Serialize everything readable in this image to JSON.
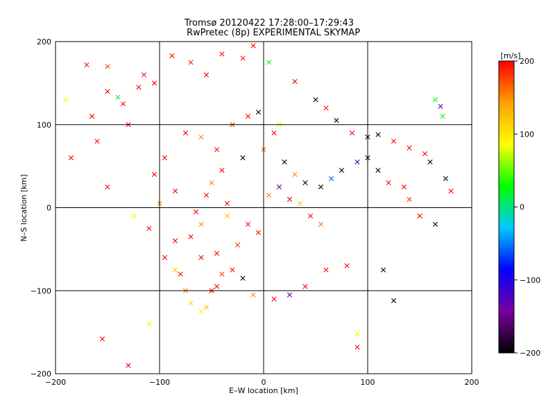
{
  "chart_data": {
    "type": "scatter",
    "title": "Tromsø 20120422 17:28:00–17:29:43",
    "subtitle": "RwPretec (8p) EXPERIMENTAL SKYMAP",
    "xlabel": "E–W location [km]",
    "ylabel": "N–S location [km]",
    "xlim": [
      -200,
      200
    ],
    "ylim": [
      -200,
      200
    ],
    "xticks": [
      -200,
      -100,
      0,
      100,
      200
    ],
    "yticks": [
      -200,
      -100,
      0,
      100,
      200
    ],
    "grid": true,
    "colorbar": {
      "label": "[m/s]",
      "range": [
        -200,
        200
      ],
      "ticks": [
        200,
        100,
        0,
        -100,
        -200
      ],
      "colors": [
        "#000000",
        "#7a00a0",
        "#0000ff",
        "#00c8ff",
        "#00ff00",
        "#ffff00",
        "#ffa000",
        "#ff0000"
      ]
    },
    "series": [
      {
        "marker": "x",
        "points": [
          [
            -170,
            172,
            195
          ],
          [
            -150,
            170,
            180
          ],
          [
            -140,
            133,
            10
          ],
          [
            -135,
            125,
            200
          ],
          [
            -120,
            145,
            200
          ],
          [
            -115,
            160,
            190
          ],
          [
            -105,
            150,
            200
          ],
          [
            -88,
            183,
            195
          ],
          [
            -70,
            175,
            190
          ],
          [
            -55,
            160,
            200
          ],
          [
            -40,
            185,
            200
          ],
          [
            -20,
            180,
            195
          ],
          [
            -10,
            195,
            200
          ],
          [
            5,
            175,
            20
          ],
          [
            30,
            152,
            200
          ],
          [
            50,
            130,
            -200
          ],
          [
            60,
            120,
            200
          ],
          [
            70,
            105,
            -200
          ],
          [
            85,
            90,
            200
          ],
          [
            100,
            85,
            -200
          ],
          [
            110,
            88,
            -200
          ],
          [
            125,
            80,
            200
          ],
          [
            140,
            72,
            200
          ],
          [
            155,
            65,
            200
          ],
          [
            165,
            130,
            20
          ],
          [
            170,
            122,
            -120
          ],
          [
            172,
            110,
            30
          ],
          [
            160,
            55,
            -200
          ],
          [
            175,
            35,
            -200
          ],
          [
            180,
            20,
            200
          ],
          [
            135,
            25,
            200
          ],
          [
            140,
            10,
            180
          ],
          [
            150,
            -10,
            200
          ],
          [
            165,
            -20,
            -200
          ],
          [
            -160,
            80,
            200
          ],
          [
            -185,
            60,
            200
          ],
          [
            -150,
            25,
            200
          ],
          [
            -125,
            -10,
            80
          ],
          [
            -110,
            -25,
            200
          ],
          [
            -95,
            -60,
            200
          ],
          [
            -85,
            -75,
            120
          ],
          [
            -80,
            -80,
            200
          ],
          [
            -75,
            -100,
            150
          ],
          [
            -70,
            -115,
            110
          ],
          [
            -60,
            -125,
            90
          ],
          [
            -55,
            -120,
            120
          ],
          [
            -50,
            -100,
            200
          ],
          [
            -45,
            -95,
            200
          ],
          [
            -40,
            -80,
            180
          ],
          [
            -30,
            -75,
            200
          ],
          [
            -20,
            -85,
            -200
          ],
          [
            -10,
            -105,
            150
          ],
          [
            10,
            -110,
            200
          ],
          [
            25,
            -105,
            -150
          ],
          [
            40,
            -95,
            200
          ],
          [
            60,
            -75,
            200
          ],
          [
            80,
            -70,
            200
          ],
          [
            115,
            -75,
            -200
          ],
          [
            125,
            -112,
            -200
          ],
          [
            90,
            -152,
            80
          ],
          [
            90,
            -168,
            200
          ],
          [
            -155,
            -158,
            200
          ],
          [
            -110,
            -140,
            90
          ],
          [
            -130,
            -190,
            200
          ],
          [
            -85,
            -40,
            200
          ],
          [
            -70,
            -35,
            200
          ],
          [
            -60,
            -20,
            150
          ],
          [
            -50,
            30,
            150
          ],
          [
            -40,
            45,
            200
          ],
          [
            -20,
            60,
            -200
          ],
          [
            0,
            70,
            160
          ],
          [
            10,
            90,
            200
          ],
          [
            20,
            55,
            -200
          ],
          [
            30,
            40,
            150
          ],
          [
            40,
            30,
            -200
          ],
          [
            55,
            25,
            -200
          ],
          [
            65,
            35,
            -60
          ],
          [
            75,
            45,
            -200
          ],
          [
            90,
            55,
            -120
          ],
          [
            100,
            60,
            -200
          ],
          [
            110,
            45,
            -200
          ],
          [
            120,
            30,
            200
          ],
          [
            -75,
            90,
            200
          ],
          [
            -60,
            85,
            150
          ],
          [
            -45,
            70,
            200
          ],
          [
            -30,
            100,
            180
          ],
          [
            -15,
            110,
            200
          ],
          [
            -5,
            115,
            -200
          ],
          [
            15,
            100,
            80
          ],
          [
            -95,
            60,
            200
          ],
          [
            -105,
            40,
            200
          ],
          [
            -85,
            20,
            200
          ],
          [
            -100,
            5,
            150
          ],
          [
            -65,
            -5,
            200
          ],
          [
            -35,
            -10,
            120
          ],
          [
            -15,
            -20,
            200
          ],
          [
            -5,
            -30,
            200
          ],
          [
            -25,
            -45,
            180
          ],
          [
            -45,
            -55,
            200
          ],
          [
            -60,
            -60,
            200
          ],
          [
            -35,
            5,
            200
          ],
          [
            -55,
            15,
            200
          ],
          [
            5,
            15,
            160
          ],
          [
            15,
            25,
            -150
          ],
          [
            25,
            10,
            200
          ],
          [
            35,
            5,
            120
          ],
          [
            45,
            -10,
            200
          ],
          [
            55,
            -20,
            160
          ],
          [
            -130,
            100,
            200
          ],
          [
            -150,
            140,
            200
          ],
          [
            -165,
            110,
            200
          ],
          [
            -190,
            130,
            90
          ]
        ]
      }
    ]
  }
}
